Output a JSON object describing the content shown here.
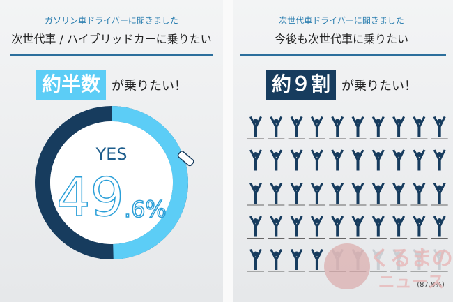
{
  "chart_data": [
    {
      "type": "donut",
      "subtitle": "ガソリン車ドライバーに聞きました",
      "title": "次世代車 / ハイブリッドカーに乗りたい",
      "headline_highlight": "約半数",
      "headline_text": "が乗りたい！",
      "label": "YES",
      "values": [
        49.6
      ],
      "value_labels": [
        "49.6%"
      ],
      "color": "#5ccdf6",
      "track_color": "#173c5e"
    },
    {
      "type": "pictograph",
      "subtitle": "次世代車ドライバーに聞きました",
      "title": "今後も次世代車に乗りたい",
      "headline_highlight": "約９割",
      "headline_text": "が乗りたい！",
      "values": [
        87.8
      ],
      "value_labels": [
        "(87.8%)"
      ],
      "color": "#173c5e",
      "empty_color": "#c9ced3"
    }
  ],
  "watermark": {
    "line1": "くるまの",
    "line2": "ニュース"
  }
}
